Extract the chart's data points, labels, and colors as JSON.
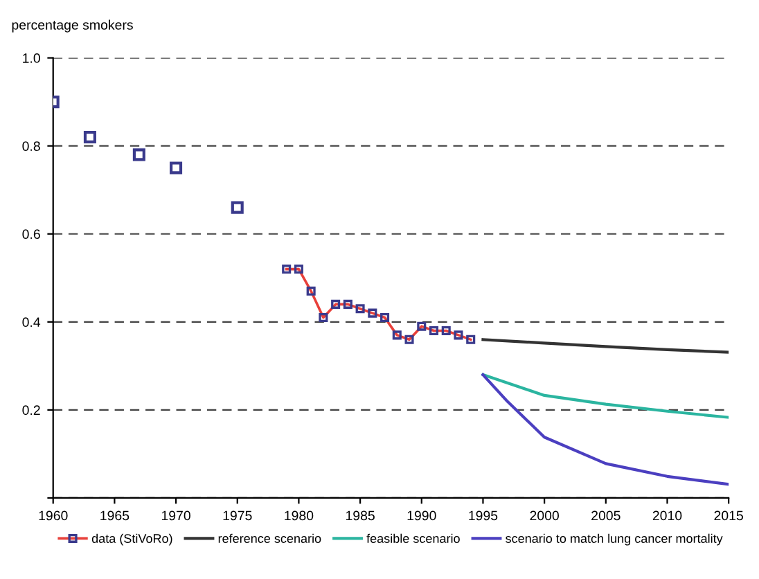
{
  "chart_data": {
    "type": "line",
    "ylabel": "percentage smokers",
    "xlim": [
      1960,
      2015
    ],
    "xticks": [
      1960,
      1965,
      1970,
      1975,
      1980,
      1985,
      1990,
      1995,
      2000,
      2005,
      2010,
      2015
    ],
    "ylim": [
      0,
      1.0
    ],
    "yticks": [
      {
        "value": 0,
        "label": null
      },
      0.2,
      0.4,
      0.6,
      0.8,
      {
        "value": 1.0,
        "label": "1.0"
      }
    ],
    "grid": "y",
    "legend": "bottom",
    "series": [
      {
        "type": "scatter",
        "color": "#3a3a8c",
        "marker": "square",
        "x": [
          1960,
          1963,
          1967,
          1970,
          1975
        ],
        "values": [
          0.9,
          0.82,
          0.78,
          0.75,
          0.66
        ]
      },
      {
        "name": "data (StiVoRo)",
        "color": "#e8403a",
        "marker": "square",
        "x": [
          1979,
          1980,
          1981,
          1982,
          1983,
          1984,
          1985,
          1986,
          1987,
          1988,
          1989,
          1990,
          1991,
          1992,
          1993,
          1994
        ],
        "values": [
          0.52,
          0.52,
          0.47,
          0.41,
          0.44,
          0.44,
          0.43,
          0.42,
          0.41,
          0.37,
          0.36,
          0.39,
          0.38,
          0.38,
          0.37,
          0.36
        ]
      },
      {
        "name": "reference scenario",
        "color": "#333333",
        "x": [
          1995,
          2000,
          2005,
          2010,
          2015
        ],
        "values": [
          0.36,
          0.352,
          0.344,
          0.337,
          0.331
        ]
      },
      {
        "name": "feasible scenario",
        "color": "#2bb5a0",
        "x": [
          1995,
          2000,
          2005,
          2010,
          2015
        ],
        "values": [
          0.28,
          0.233,
          0.213,
          0.197,
          0.183
        ]
      },
      {
        "name": "scenario to match lung cancer mortality",
        "color": "#4b3fc0",
        "x": [
          1995,
          1997,
          2000,
          2005,
          2010,
          2015
        ],
        "values": [
          0.28,
          0.219,
          0.138,
          0.078,
          0.049,
          0.031
        ]
      }
    ]
  }
}
